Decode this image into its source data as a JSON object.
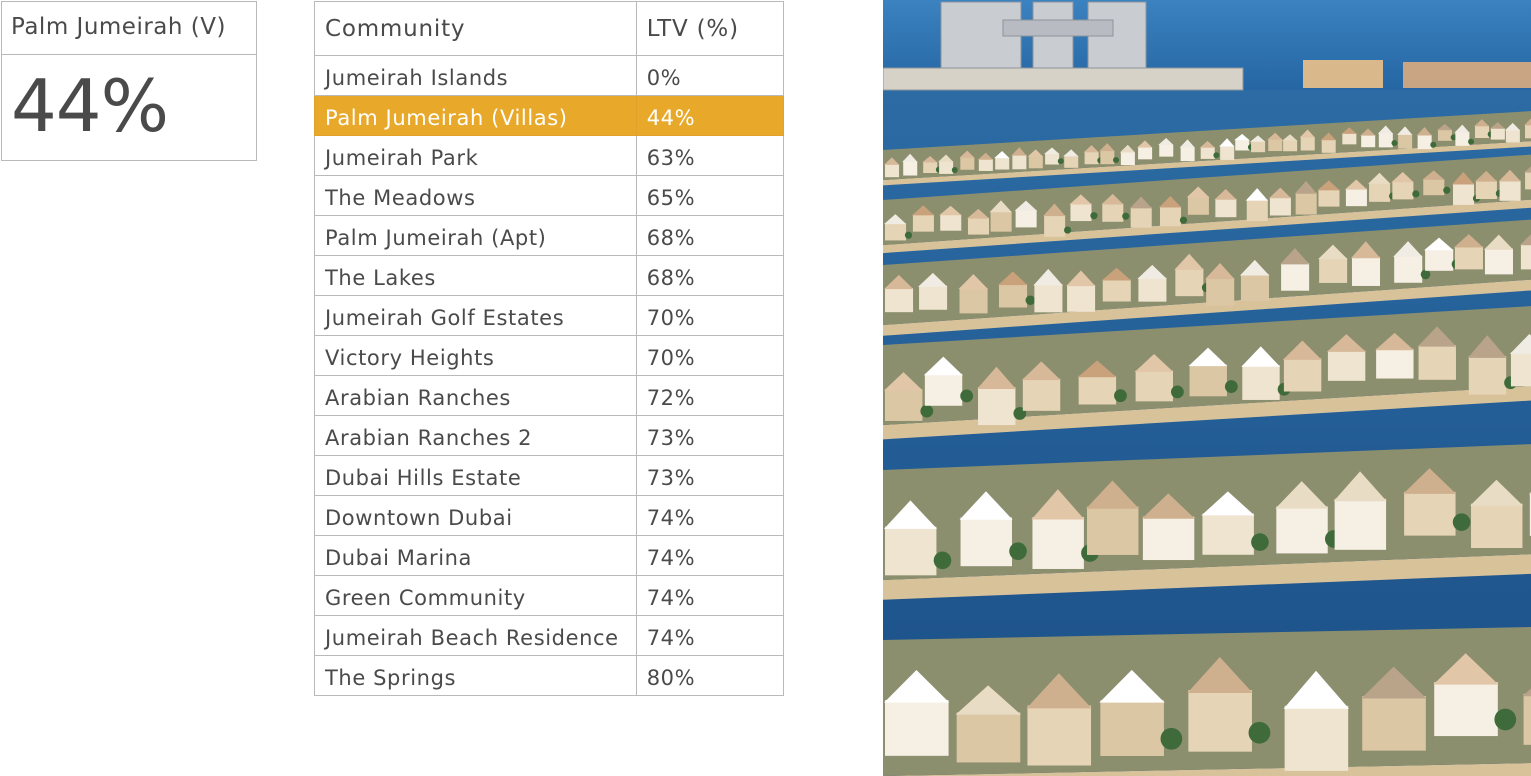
{
  "card": {
    "title": "Palm Jumeirah (V)",
    "value": "44%"
  },
  "table": {
    "headers": {
      "community": "Community",
      "ltv": "LTV (%)"
    },
    "highlight_index": 1,
    "rows": [
      {
        "community": "Jumeirah Islands",
        "ltv": "0%"
      },
      {
        "community": "Palm Jumeirah (Villas)",
        "ltv": "44%"
      },
      {
        "community": "Jumeirah Park",
        "ltv": "63%"
      },
      {
        "community": "The Meadows",
        "ltv": "65%"
      },
      {
        "community": "Palm Jumeirah (Apt)",
        "ltv": "68%"
      },
      {
        "community": "The Lakes",
        "ltv": "68%"
      },
      {
        "community": "Jumeirah Golf Estates",
        "ltv": "70%"
      },
      {
        "community": "Victory Heights",
        "ltv": "70%"
      },
      {
        "community": "Arabian Ranches",
        "ltv": "72%"
      },
      {
        "community": "Arabian Ranches 2",
        "ltv": "73%"
      },
      {
        "community": "Dubai Hills Estate",
        "ltv": "73%"
      },
      {
        "community": "Downtown Dubai",
        "ltv": "74%"
      },
      {
        "community": "Dubai Marina",
        "ltv": "74%"
      },
      {
        "community": "Green Community",
        "ltv": "74%"
      },
      {
        "community": "Jumeirah Beach Residence",
        "ltv": "74%"
      },
      {
        "community": "The Springs",
        "ltv": "80%"
      }
    ]
  },
  "colors": {
    "highlight": "#e8a92a",
    "border": "#b9b9b9",
    "text": "#4a4a4a",
    "water": "#1f5f9a",
    "sand": "#d8c29a"
  }
}
